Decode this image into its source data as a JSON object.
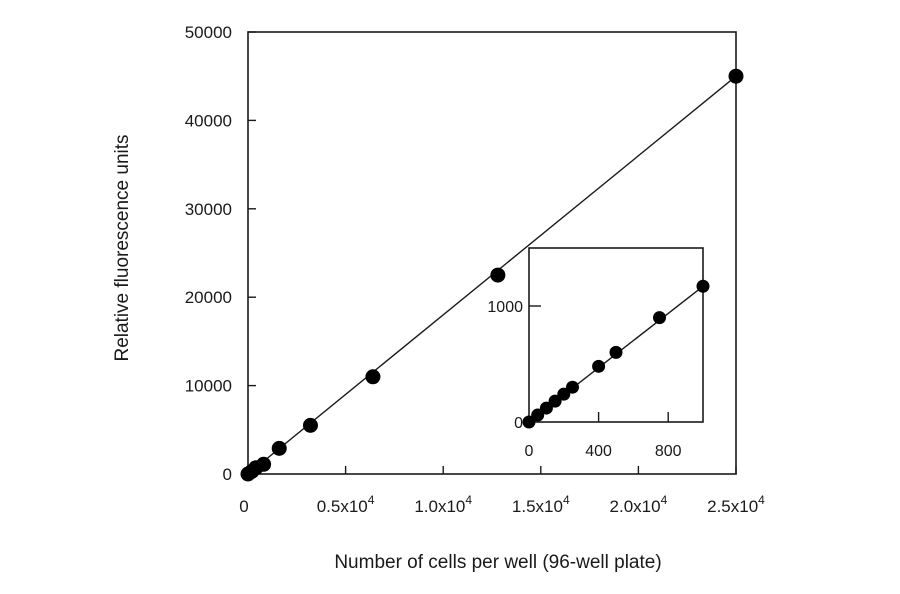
{
  "chart_data": [
    {
      "type": "scatter",
      "title": "",
      "xlabel": "Number of cells per well (96-well plate)",
      "ylabel": "Relative fluorescence units",
      "xlim": [
        0,
        25000
      ],
      "ylim": [
        0,
        50000
      ],
      "x_ticks": [
        {
          "value": 0,
          "mantissa": "0",
          "exponent": ""
        },
        {
          "value": 5000,
          "mantissa": "0.5x10",
          "exponent": "4"
        },
        {
          "value": 10000,
          "mantissa": "1.0x10",
          "exponent": "4"
        },
        {
          "value": 15000,
          "mantissa": "1.5x10",
          "exponent": "4"
        },
        {
          "value": 20000,
          "mantissa": "2.0x10",
          "exponent": "4"
        },
        {
          "value": 25000,
          "mantissa": "2.5x10",
          "exponent": "4"
        }
      ],
      "y_ticks": [
        {
          "value": 0,
          "label": "0"
        },
        {
          "value": 10000,
          "label": "10000"
        },
        {
          "value": 20000,
          "label": "20000"
        },
        {
          "value": 30000,
          "label": "30000"
        },
        {
          "value": 40000,
          "label": "40000"
        },
        {
          "value": 50000,
          "label": "50000"
        }
      ],
      "points": [
        {
          "x": 0,
          "y": 0
        },
        {
          "x": 200,
          "y": 300
        },
        {
          "x": 400,
          "y": 700
        },
        {
          "x": 800,
          "y": 1100
        },
        {
          "x": 1600,
          "y": 2900
        },
        {
          "x": 3200,
          "y": 5500
        },
        {
          "x": 6400,
          "y": 11000
        },
        {
          "x": 12800,
          "y": 22500
        },
        {
          "x": 25000,
          "y": 45000
        }
      ],
      "fit_line": {
        "x": [
          0,
          25000
        ],
        "y": [
          0,
          45000
        ]
      },
      "grid": false
    },
    {
      "type": "scatter",
      "title": "",
      "xlabel": "",
      "ylabel": "",
      "xlim": [
        0,
        1000
      ],
      "ylim": [
        0,
        1500
      ],
      "x_ticks": [
        {
          "value": 0,
          "label": "0"
        },
        {
          "value": 400,
          "label": "400"
        },
        {
          "value": 800,
          "label": "800"
        }
      ],
      "y_ticks": [
        {
          "value": 0,
          "label": "0"
        },
        {
          "value": 1000,
          "label": "1000"
        }
      ],
      "points": [
        {
          "x": 0,
          "y": 0
        },
        {
          "x": 50,
          "y": 60
        },
        {
          "x": 100,
          "y": 120
        },
        {
          "x": 150,
          "y": 180
        },
        {
          "x": 200,
          "y": 240
        },
        {
          "x": 250,
          "y": 300
        },
        {
          "x": 400,
          "y": 480
        },
        {
          "x": 500,
          "y": 600
        },
        {
          "x": 750,
          "y": 900
        },
        {
          "x": 1000,
          "y": 1170
        }
      ],
      "fit_line": {
        "x": [
          0,
          1000
        ],
        "y": [
          0,
          1170
        ]
      },
      "grid": false
    }
  ]
}
